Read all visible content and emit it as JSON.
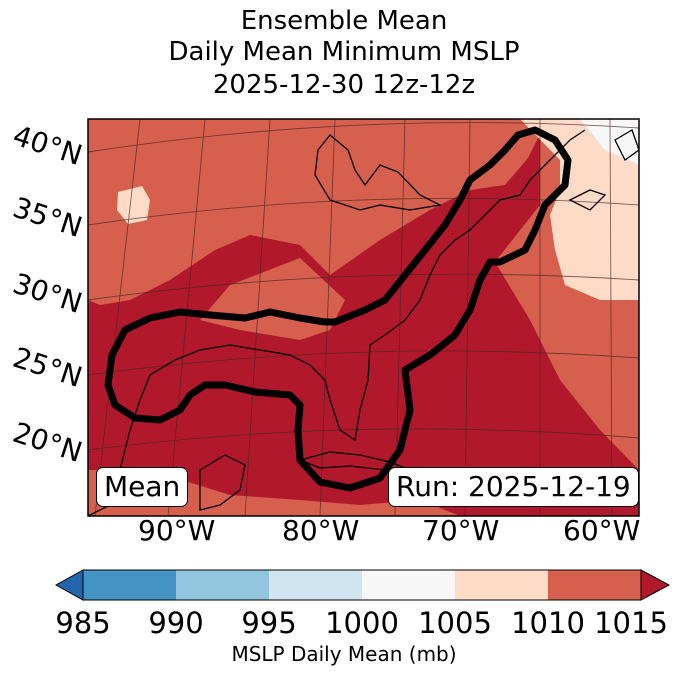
{
  "title": {
    "line1": "Ensemble Mean",
    "line2": "Daily Mean Minimum MSLP",
    "line3": "2025-12-30 12z-12z"
  },
  "map": {
    "lat_labels": [
      "40°N",
      "35°N",
      "30°N",
      "25°N",
      "20°N"
    ],
    "lon_labels": [
      "90°W",
      "80°W",
      "70°W",
      "60°W"
    ],
    "extent": {
      "lon_min": -97,
      "lon_max": -58,
      "lat_min": 17,
      "lat_max": 42
    },
    "mean_label": "Mean",
    "run_label": "Run: 2025-12-19",
    "colors": {
      "background_fill": "#b2182b",
      "mid_fill": "#d6604d",
      "light_fill": "#fddbc7",
      "outline": "#000000"
    }
  },
  "colorbar": {
    "label": "MSLP Daily Mean (mb)",
    "ticks": [
      "985",
      "990",
      "995",
      "1000",
      "1005",
      "1010",
      "1015"
    ],
    "colors": [
      "#2166ac",
      "#4393c3",
      "#92c5de",
      "#d1e5f0",
      "#f7f7f7",
      "#fddbc7",
      "#d6604d",
      "#b2182b"
    ]
  }
}
